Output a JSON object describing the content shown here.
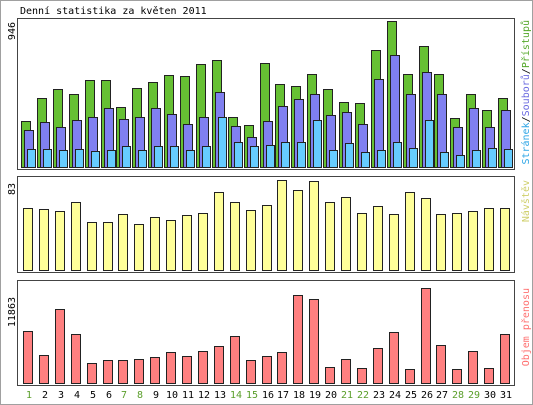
{
  "chart_data": {
    "type": "bar",
    "title": "Denní statistika za květen 2011",
    "categories": [
      "1",
      "2",
      "3",
      "4",
      "5",
      "6",
      "7",
      "8",
      "9",
      "10",
      "11",
      "12",
      "13",
      "14",
      "15",
      "16",
      "17",
      "18",
      "19",
      "20",
      "21",
      "22",
      "23",
      "24",
      "25",
      "26",
      "27",
      "28",
      "29",
      "30",
      "31"
    ],
    "weekend_days": [
      1,
      7,
      8,
      14,
      15,
      21,
      22,
      28,
      29
    ],
    "label_color": "#000000",
    "weekend_label_color": "#5a9e2a",
    "legend_separator": "/",
    "legend_separator_color": "#000000",
    "legend_placement": "right",
    "grid": false,
    "panels": [
      {
        "max_label": "946",
        "ylim": [
          0,
          946
        ],
        "series": [
          {
            "name": "Stránek",
            "color": "#66ccff",
            "text_color": "#2fa6e6",
            "values": [
              116,
              116,
              109,
              116,
              103,
              109,
              135,
              109,
              135,
              135,
              109,
              135,
              322,
              161,
              135,
              142,
              161,
              161,
              302,
              109,
              154,
              97,
              109,
              161,
              122,
              302,
              97,
              77,
              109,
              122,
              116
            ]
          },
          {
            "name": "Souborů",
            "color": "#8080f0",
            "text_color": "#6b6be0",
            "values": [
              238,
              290,
              257,
              302,
              322,
              380,
              309,
              322,
              380,
              341,
              277,
              322,
              489,
              264,
              193,
              296,
              393,
              438,
              470,
              335,
              354,
              277,
              573,
              727,
              470,
              618,
              470,
              257,
              380,
              257,
              367
            ]
          },
          {
            "name": "Přístupů",
            "color": "#66c033",
            "text_color": "#55a82a",
            "values": [
              296,
              444,
              508,
              476,
              566,
              566,
              386,
              515,
              553,
              598,
              592,
              669,
              695,
              322,
              270,
              676,
              541,
              528,
              605,
              508,
              418,
              412,
              759,
              946,
              605,
              785,
              605,
              315,
              470,
              367,
              444
            ]
          }
        ]
      },
      {
        "max_label": "83",
        "ylim": [
          0,
          83
        ],
        "series": [
          {
            "name": "Návštěv",
            "color": "#ffff99",
            "text_color": "#cfcf6a",
            "values": [
              57,
              56,
              54,
              63,
              44,
              44,
              52,
              42,
              49,
              46,
              51,
              53,
              72,
              63,
              55,
              60,
              83,
              74,
              82,
              63,
              67,
              53,
              59,
              52,
              72,
              66,
              52,
              53,
              54,
              57,
              57
            ]
          }
        ]
      },
      {
        "max_label": "11863",
        "ylim": [
          0,
          11863
        ],
        "series": [
          {
            "name": "Objem přenosu",
            "color": "#ff8080",
            "text_color": "#ff7070",
            "values": [
              6494,
              3497,
              9241,
              6119,
              2497,
              2872,
              2872,
              2997,
              3247,
              3871,
              3372,
              3996,
              4620,
              5869,
              2872,
              3372,
              3871,
              10989,
              10489,
              1998,
              2997,
              1873,
              4371,
              6369,
              1748,
              11863,
              4745,
              1748,
              3996,
              1873,
              6119
            ]
          }
        ]
      }
    ]
  }
}
